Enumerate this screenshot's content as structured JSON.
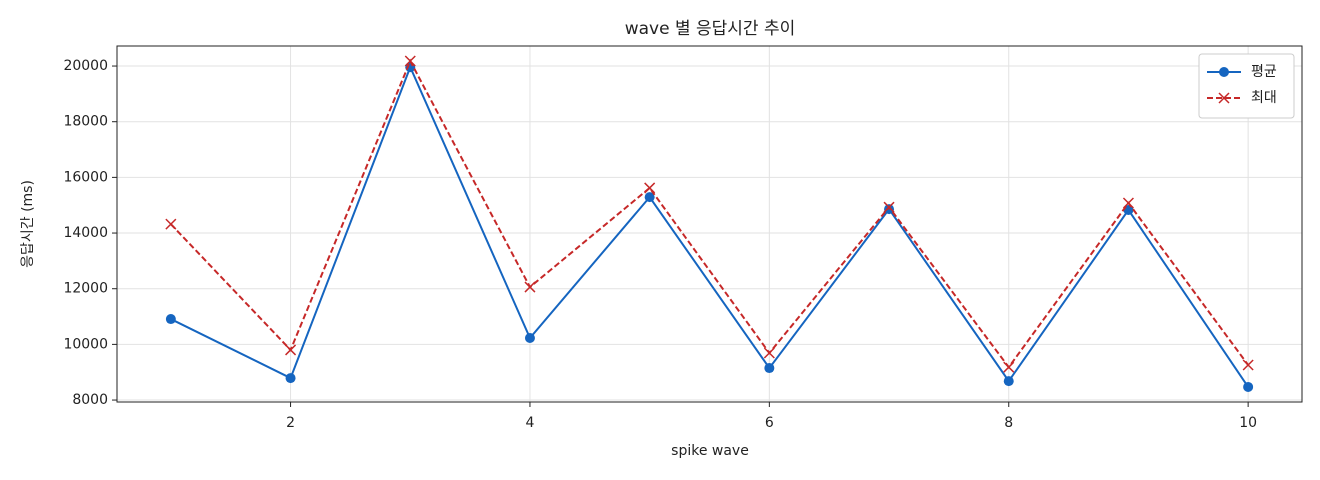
{
  "chart_data": {
    "type": "line",
    "title": "wave 별 응답시간 추이",
    "xlabel": "spike wave",
    "ylabel": "응답시간 (ms)",
    "x": [
      1,
      2,
      3,
      4,
      5,
      6,
      7,
      8,
      9,
      10
    ],
    "series": [
      {
        "name": "평균",
        "color": "#1565c0",
        "linestyle": "solid",
        "marker": "circle",
        "values": [
          10910,
          8790,
          19960,
          10230,
          15290,
          9150,
          14860,
          8680,
          14830,
          8470
        ]
      },
      {
        "name": "최대",
        "color": "#c62828",
        "linestyle": "dashed",
        "marker": "x",
        "values": [
          14320,
          9800,
          20180,
          12060,
          15620,
          9690,
          14930,
          9180,
          15080,
          9260
        ]
      }
    ],
    "xlim": [
      0.55,
      10.45
    ],
    "ylim": [
      7930,
      20720
    ],
    "xticks": [
      2,
      4,
      6,
      8,
      10
    ],
    "yticks": [
      8000,
      10000,
      12000,
      14000,
      16000,
      18000,
      20000
    ],
    "grid": true,
    "legend": "upper right"
  }
}
